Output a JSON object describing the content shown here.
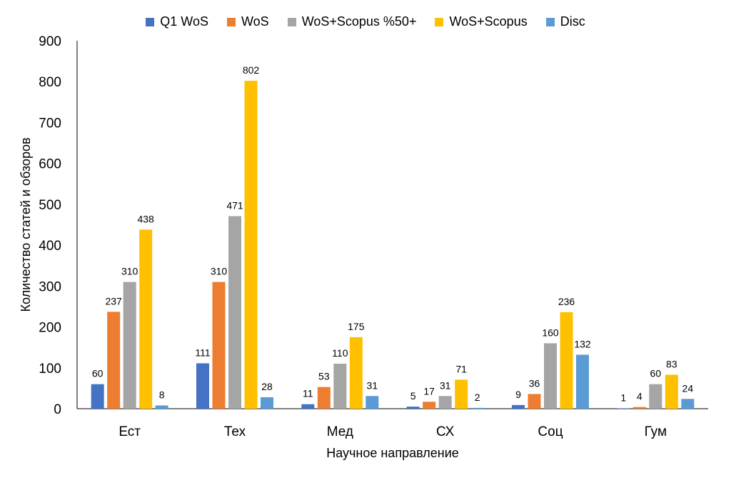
{
  "chart_data": {
    "type": "bar",
    "xlabel": "Научное направление",
    "ylabel": "Количество статей и обзоров",
    "ylim": [
      0,
      900
    ],
    "yticks": [
      0,
      100,
      200,
      300,
      400,
      500,
      600,
      700,
      800,
      900
    ],
    "grid": false,
    "legend_position": "top",
    "categories": [
      "Ест",
      "Тех",
      "Мед",
      "СХ",
      "Соц",
      "Гум"
    ],
    "series": [
      {
        "name": "Q1 WoS",
        "color": "#4472C4",
        "values": [
          60,
          111,
          11,
          5,
          9,
          1
        ]
      },
      {
        "name": "WoS",
        "color": "#ED7D31",
        "values": [
          237,
          310,
          53,
          17,
          36,
          4
        ]
      },
      {
        "name": "WoS+Scopus %50+",
        "color": "#A5A5A5",
        "values": [
          310,
          471,
          110,
          31,
          160,
          60
        ]
      },
      {
        "name": "WoS+Scopus",
        "color": "#FFC000",
        "values": [
          438,
          802,
          175,
          71,
          236,
          83
        ]
      },
      {
        "name": "Disc",
        "color": "#5B9BD5",
        "values": [
          8,
          28,
          31,
          2,
          132,
          24
        ]
      }
    ]
  }
}
